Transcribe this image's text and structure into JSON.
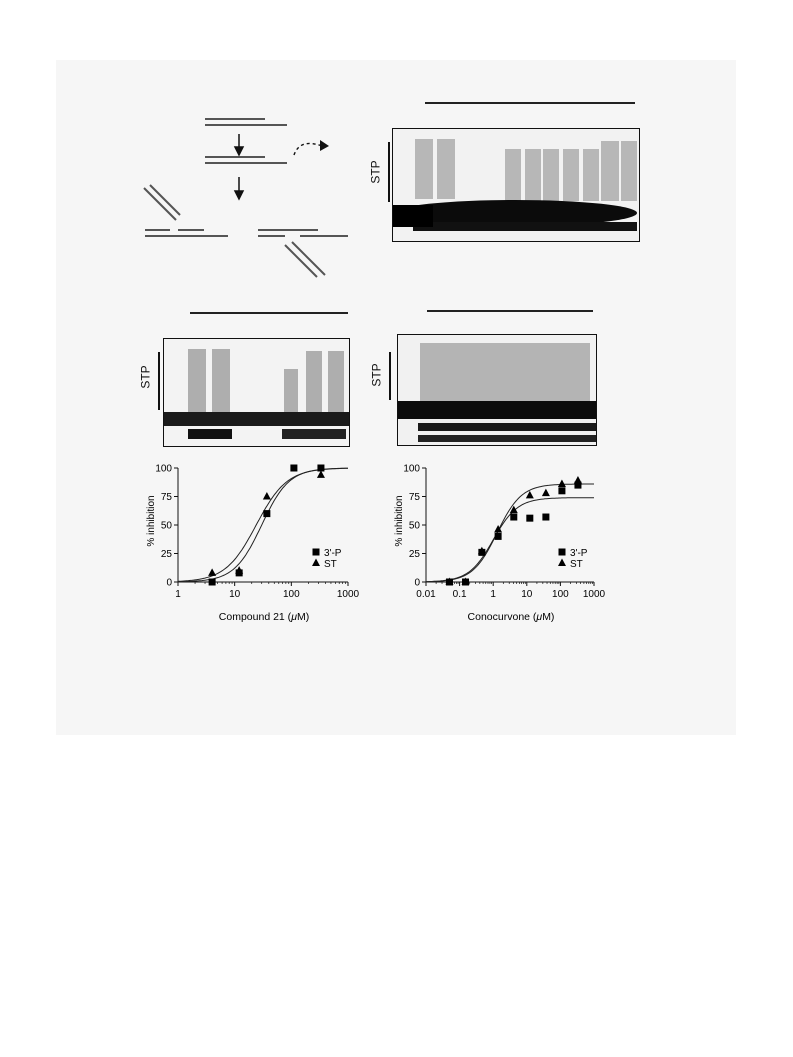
{
  "gel_labels": {
    "stp": "STP"
  },
  "panels": {
    "compound21": {
      "xlabel": "Compound 21 (",
      "xunit_mu": "μ",
      "xlabel_end": "M)"
    },
    "conocurvone": {
      "xlabel": "Conocurvone (",
      "xunit_mu": "μ",
      "xlabel_end": "M)"
    }
  },
  "chart_data": [
    {
      "type": "scatter",
      "title": "",
      "xlabel": "Compound 21 (μM)",
      "ylabel": "% inhibition",
      "xscale": "log",
      "xlim": [
        1,
        1000
      ],
      "ylim": [
        0,
        100
      ],
      "xticks": [
        "1",
        "10",
        "100",
        "1000"
      ],
      "yticks": [
        "0",
        "25",
        "50",
        "75",
        "100"
      ],
      "legend_position": "bottom-right",
      "series": [
        {
          "name": "3'-P",
          "marker": "square",
          "x": [
            4,
            12,
            37,
            111,
            333
          ],
          "y": [
            0,
            8,
            60,
            100,
            100
          ]
        },
        {
          "name": "ST",
          "marker": "triangle",
          "x": [
            4,
            12,
            37,
            333
          ],
          "y": [
            8,
            10,
            75,
            94
          ]
        }
      ],
      "curves": [
        {
          "ic50": 24,
          "hill": 1.6,
          "top": 100
        },
        {
          "ic50": 30,
          "hill": 1.8,
          "top": 100
        }
      ]
    },
    {
      "type": "scatter",
      "title": "",
      "xlabel": "Conocurvone (μM)",
      "ylabel": "% inhibition",
      "xscale": "log",
      "xlim": [
        0.01,
        1000
      ],
      "ylim": [
        0,
        100
      ],
      "xticks": [
        "0.01",
        "0.1",
        "1",
        "10",
        "100",
        "1000"
      ],
      "yticks": [
        "0",
        "25",
        "50",
        "75",
        "100"
      ],
      "legend_position": "bottom-right",
      "series": [
        {
          "name": "3'-P",
          "marker": "square",
          "x": [
            0.05,
            0.15,
            0.46,
            1.4,
            4.1,
            12.3,
            37,
            111,
            333
          ],
          "y": [
            0,
            0,
            26,
            40,
            57,
            56,
            57,
            80,
            85
          ]
        },
        {
          "name": "ST",
          "marker": "triangle",
          "x": [
            0.05,
            0.15,
            0.46,
            1.4,
            4.1,
            12.3,
            37,
            111,
            333
          ],
          "y": [
            0,
            0,
            27,
            46,
            63,
            76,
            78,
            86,
            89
          ]
        }
      ],
      "curves": [
        {
          "ic50": 1.0,
          "hill": 1.2,
          "top": 74
        },
        {
          "ic50": 1.3,
          "hill": 1.2,
          "top": 86
        }
      ]
    }
  ]
}
